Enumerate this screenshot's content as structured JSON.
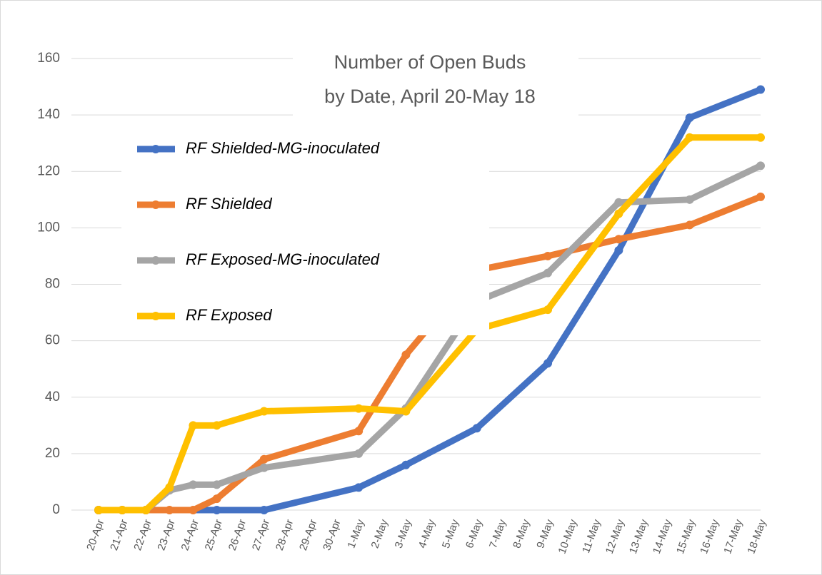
{
  "chart_data": {
    "type": "line",
    "title": [
      "Number of Open Buds",
      "by Date, April 20-May 18"
    ],
    "categories": [
      "20-Apr",
      "21-Apr",
      "22-Apr",
      "23-Apr",
      "24-Apr",
      "25-Apr",
      "26-Apr",
      "27-Apr",
      "28-Apr",
      "29-Apr",
      "30-Apr",
      "1-May",
      "2-May",
      "3-May",
      "4-May",
      "5-May",
      "6-May",
      "7-May",
      "8-May",
      "9-May",
      "10-May",
      "11-May",
      "12-May",
      "13-May",
      "14-May",
      "15-May",
      "16-May",
      "17-May",
      "18-May"
    ],
    "ylim": [
      0,
      160
    ],
    "yticks": [
      0,
      20,
      40,
      60,
      80,
      100,
      120,
      140,
      160
    ],
    "grid": true,
    "series": [
      {
        "name": "RF Shielded-MG-inoculated",
        "color": "#4472c4",
        "x": [
          "20-Apr",
          "21-Apr",
          "22-Apr",
          "25-Apr",
          "27-Apr",
          "1-May",
          "3-May",
          "6-May",
          "9-May",
          "12-May",
          "15-May",
          "18-May"
        ],
        "values": [
          0,
          0,
          0,
          0,
          0,
          8,
          16,
          29,
          52,
          92,
          139,
          149
        ]
      },
      {
        "name": "RF Shielded",
        "color": "#ed7d31",
        "x": [
          "20-Apr",
          "21-Apr",
          "22-Apr",
          "23-Apr",
          "24-Apr",
          "25-Apr",
          "27-Apr",
          "1-May",
          "3-May",
          "6-May",
          "9-May",
          "12-May",
          "15-May",
          "18-May"
        ],
        "values": [
          0,
          0,
          0,
          0,
          0,
          4,
          18,
          28,
          55,
          85,
          90,
          96,
          101,
          111
        ]
      },
      {
        "name": "RF Exposed-MG-inoculated",
        "color": "#a5a5a5",
        "x": [
          "20-Apr",
          "21-Apr",
          "22-Apr",
          "23-Apr",
          "24-Apr",
          "25-Apr",
          "27-Apr",
          "1-May",
          "3-May",
          "6-May",
          "9-May",
          "12-May",
          "15-May",
          "18-May"
        ],
        "values": [
          0,
          0,
          0,
          7,
          9,
          9,
          15,
          20,
          36,
          74,
          84,
          109,
          110,
          122
        ]
      },
      {
        "name": "RF Exposed",
        "color": "#ffc000",
        "x": [
          "20-Apr",
          "21-Apr",
          "22-Apr",
          "23-Apr",
          "24-Apr",
          "25-Apr",
          "27-Apr",
          "1-May",
          "3-May",
          "6-May",
          "9-May",
          "12-May",
          "15-May",
          "18-May"
        ],
        "values": [
          0,
          0,
          0,
          8,
          30,
          30,
          35,
          36,
          35,
          64,
          71,
          105,
          132,
          132
        ]
      }
    ]
  }
}
